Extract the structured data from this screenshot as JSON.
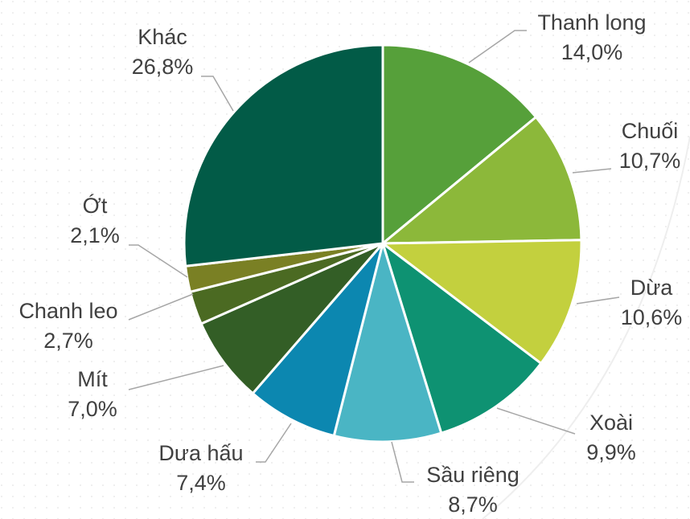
{
  "chart_data": {
    "type": "pie",
    "categories": [
      "Thanh long",
      "Chuối",
      "Dừa",
      "Xoài",
      "Sầu riêng",
      "Dưa hấu",
      "Mít",
      "Chanh leo",
      "Ớt",
      "Khác"
    ],
    "values": [
      14.0,
      10.7,
      10.6,
      9.9,
      8.7,
      7.4,
      7.0,
      2.7,
      2.1,
      26.8
    ],
    "value_labels": [
      "14,0%",
      "10,7%",
      "10,6%",
      "9,9%",
      "8,7%",
      "7,4%",
      "7,0%",
      "2,7%",
      "2,1%",
      "26,8%"
    ],
    "colors": [
      "#56a03a",
      "#8cb83a",
      "#c3d03e",
      "#0e9272",
      "#4ab5c4",
      "#0c87b0",
      "#335e26",
      "#4b6a22",
      "#7a8024",
      "#025b47"
    ]
  }
}
